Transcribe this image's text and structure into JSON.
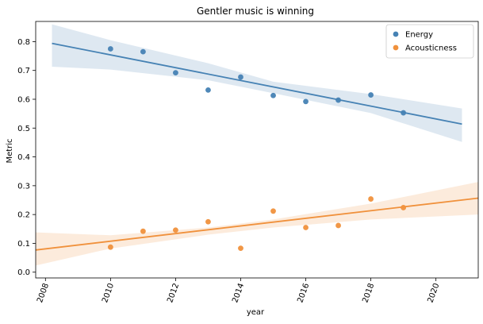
{
  "chart_data": {
    "type": "scatter",
    "title": "Gentler music is winning",
    "xlabel": "year",
    "ylabel": "Metric",
    "xlim": [
      2007.7,
      2021.3
    ],
    "ylim": [
      -0.02,
      0.87
    ],
    "xticks": [
      2008,
      2010,
      2012,
      2014,
      2016,
      2018,
      2020
    ],
    "xtick_labels": [
      "2008",
      "2010",
      "2012",
      "2014",
      "2016",
      "2018",
      "2020"
    ],
    "yticks": [
      0.0,
      0.1,
      0.2,
      0.3,
      0.4,
      0.5,
      0.6,
      0.7,
      0.8
    ],
    "ytick_labels": [
      "0.0",
      "0.1",
      "0.2",
      "0.3",
      "0.4",
      "0.5",
      "0.6",
      "0.7",
      "0.8"
    ],
    "xtick_rotation_deg": 70,
    "grid": false,
    "legend_position": "top-right",
    "series": [
      {
        "name": "Energy",
        "color": "#4682b4",
        "x": [
          2010,
          2011,
          2012,
          2013,
          2014,
          2015,
          2016,
          2017,
          2018,
          2019
        ],
        "y": [
          0.775,
          0.765,
          0.692,
          0.632,
          0.677,
          0.613,
          0.592,
          0.597,
          0.615,
          0.553
        ],
        "fit": {
          "x": [
            2008.2,
            2020.8
          ],
          "y": [
            0.794,
            0.514
          ]
        },
        "ci_upper": [
          [
            2008.2,
            0.86
          ],
          [
            2010,
            0.805
          ],
          [
            2013,
            0.725
          ],
          [
            2015,
            0.661
          ],
          [
            2018,
            0.618
          ],
          [
            2020.8,
            0.568
          ]
        ],
        "ci_lower": [
          [
            2008.2,
            0.713
          ],
          [
            2010,
            0.703
          ],
          [
            2013,
            0.666
          ],
          [
            2015,
            0.621
          ],
          [
            2018,
            0.552
          ],
          [
            2020.8,
            0.452
          ]
        ]
      },
      {
        "name": "Acousticness",
        "color": "#f0913c",
        "x": [
          2010,
          2011,
          2012,
          2013,
          2014,
          2015,
          2016,
          2017,
          2018,
          2019
        ],
        "y": [
          0.087,
          0.142,
          0.146,
          0.175,
          0.083,
          0.212,
          0.155,
          0.162,
          0.254,
          0.224
        ],
        "fit": {
          "x": [
            2007.7,
            2021.3
          ],
          "y": [
            0.077,
            0.257
          ]
        },
        "ci_upper": [
          [
            2007.7,
            0.138
          ],
          [
            2010,
            0.128
          ],
          [
            2013,
            0.155
          ],
          [
            2015,
            0.183
          ],
          [
            2018,
            0.238
          ],
          [
            2021.3,
            0.313
          ]
        ],
        "ci_lower": [
          [
            2007.7,
            0.023
          ],
          [
            2010,
            0.082
          ],
          [
            2013,
            0.13
          ],
          [
            2015,
            0.155
          ],
          [
            2018,
            0.183
          ],
          [
            2021.3,
            0.2
          ]
        ]
      }
    ]
  }
}
